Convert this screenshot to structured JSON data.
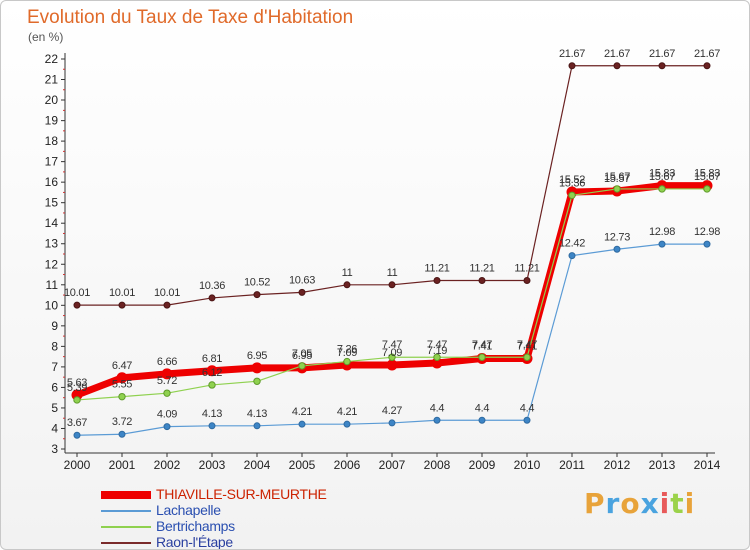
{
  "title": "Evolution du Taux de Taxe d'Habitation",
  "subtitle": "(en %)",
  "logo": "Proxiti",
  "chart_data": {
    "type": "line",
    "x": [
      "2000",
      "2001",
      "2002",
      "2003",
      "2004",
      "2005",
      "2006",
      "2007",
      "2008",
      "2009",
      "2010",
      "2011",
      "2012",
      "2013",
      "2014"
    ],
    "ylim": [
      3,
      22
    ],
    "yticks": [
      "3",
      "4",
      "5",
      "6",
      "7",
      "8",
      "9",
      "10",
      "11",
      "12",
      "13",
      "14",
      "15",
      "16",
      "17",
      "18",
      "19",
      "20",
      "21",
      "22"
    ],
    "grid": false,
    "legend_position": "bottom-left",
    "series": [
      {
        "name": "THIAVILLE-SUR-MEURTHE",
        "color": "#ee0000",
        "values": [
          5.63,
          6.47,
          6.66,
          6.81,
          6.95,
          6.95,
          7.09,
          7.09,
          7.19,
          7.41,
          7.41,
          15.52,
          15.57,
          15.83,
          15.83
        ],
        "labels": [
          "5.63",
          "6.47",
          "6.66",
          "6.81",
          "6.95",
          "6.95",
          "7.09",
          "7.09",
          "7.19",
          "7.41",
          "7.41",
          "15.52",
          "15.57",
          "15.83",
          "15.83"
        ]
      },
      {
        "name": "Lachapelle",
        "color": "#5b9bd5",
        "values": [
          3.67,
          3.72,
          4.09,
          4.13,
          4.13,
          4.21,
          4.21,
          4.27,
          4.4,
          4.4,
          4.4,
          12.42,
          12.73,
          12.98,
          12.98
        ],
        "labels": [
          "3.67",
          "3.72",
          "4.09",
          "4.13",
          "4.13",
          "4.21",
          "4.21",
          "4.27",
          "4.4",
          "4.4",
          "4.4",
          "12.42",
          "12.73",
          "12.98",
          "12.98"
        ]
      },
      {
        "name": "Bertrichamps",
        "color": "#8fd14f",
        "values": [
          5.39,
          5.55,
          5.72,
          6.12,
          6.3,
          7.05,
          7.26,
          7.47,
          7.47,
          7.47,
          7.47,
          15.36,
          15.67,
          15.67,
          15.67
        ],
        "labels": [
          "5.39",
          "5.55",
          "5.72",
          "6.12",
          "",
          "7.05",
          "7.26",
          "7.47",
          "7.47",
          "7.47",
          "7.47",
          "15.36",
          "15.67",
          "15.67",
          "15.67"
        ]
      },
      {
        "name": "Raon-l'Étape",
        "color": "#7a2a2a",
        "values": [
          10.01,
          10.01,
          10.01,
          10.36,
          10.52,
          10.63,
          11,
          11,
          11.21,
          11.21,
          11.21,
          21.67,
          21.67,
          21.67,
          21.67
        ],
        "labels": [
          "10.01",
          "10.01",
          "10.01",
          "10.36",
          "10.52",
          "10.63",
          "11",
          "11",
          "11.21",
          "11.21",
          "11.21",
          "21.67",
          "21.67",
          "21.67",
          "21.67"
        ]
      }
    ]
  }
}
